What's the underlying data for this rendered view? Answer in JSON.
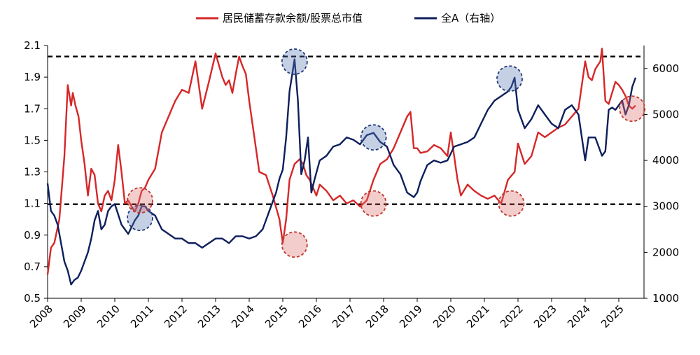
{
  "chart_data": {
    "type": "line",
    "legend": {
      "placement": "top-center",
      "entries": [
        {
          "name": "居民储蓄存款余额/股票总市值",
          "color": "#d62728",
          "axis": "left"
        },
        {
          "name": "全A（右轴）",
          "color": "#0d1f5c",
          "axis": "right"
        }
      ]
    },
    "x_ticks": [
      "2008",
      "2009",
      "2010",
      "2011",
      "2012",
      "2013",
      "2014",
      "2015",
      "2016",
      "2017",
      "2018",
      "2019",
      "2020",
      "2021",
      "2022",
      "2023",
      "2024",
      "2025"
    ],
    "y_left": {
      "range": [
        0.5,
        2.1
      ],
      "ticks": [
        "0.5",
        "0.7",
        "0.9",
        "1.1",
        "1.3",
        "1.5",
        "1.7",
        "1.9",
        "2.1"
      ]
    },
    "y_right": {
      "range": [
        1000,
        6500
      ],
      "ticks": [
        "1000",
        "2000",
        "3000",
        "4000",
        "5000",
        "6000"
      ]
    },
    "reference_lines": [
      {
        "axis": "left",
        "value": 2.03,
        "style": "dashed",
        "color": "#000000"
      },
      {
        "axis": "left",
        "value": 1.095,
        "style": "dashed",
        "color": "#000000"
      }
    ],
    "highlights": [
      {
        "series": "全A（右轴）",
        "x": 2015.35,
        "y": 6150,
        "color": "#1f3a7a"
      },
      {
        "series": "全A（右轴）",
        "x": 2017.7,
        "y": 4500,
        "color": "#1f3a7a"
      },
      {
        "series": "全A（右轴）",
        "x": 2021.75,
        "y": 5780,
        "color": "#1f3a7a"
      },
      {
        "series": "全A（右轴）",
        "x": 2010.75,
        "y": 2750,
        "color": "#1f3a7a"
      },
      {
        "series": "居民储蓄存款余额/股票总市值",
        "x": 2010.75,
        "y": 1.12,
        "color": "#c0392b"
      },
      {
        "series": "居民储蓄存款余额/股票总市值",
        "x": 2015.35,
        "y": 0.84,
        "color": "#c0392b"
      },
      {
        "series": "居民储蓄存款余额/股票总市值",
        "x": 2017.7,
        "y": 1.1,
        "color": "#c0392b"
      },
      {
        "series": "居民储蓄存款余额/股票总市值",
        "x": 2021.8,
        "y": 1.1,
        "color": "#c0392b"
      },
      {
        "series": "居民储蓄存款余额/股票总市值",
        "x": 2025.4,
        "y": 1.7,
        "color": "#c0392b"
      }
    ],
    "series": [
      {
        "name": "居民储蓄存款余额/股票总市值",
        "axis": "left",
        "color": "#d62728",
        "x": [
          2008.0,
          2008.1,
          2008.2,
          2008.35,
          2008.5,
          2008.6,
          2008.7,
          2008.75,
          2008.83,
          2008.92,
          2009.0,
          2009.1,
          2009.2,
          2009.3,
          2009.4,
          2009.5,
          2009.6,
          2009.7,
          2009.8,
          2009.9,
          2010.0,
          2010.1,
          2010.2,
          2010.3,
          2010.4,
          2010.5,
          2010.6,
          2010.7,
          2010.8,
          2010.9,
          2011.0,
          2011.2,
          2011.4,
          2011.6,
          2011.8,
          2012.0,
          2012.2,
          2012.4,
          2012.6,
          2012.8,
          2013.0,
          2013.2,
          2013.3,
          2013.4,
          2013.5,
          2013.6,
          2013.7,
          2013.8,
          2013.9,
          2014.0,
          2014.1,
          2014.2,
          2014.3,
          2014.5,
          2014.7,
          2014.9,
          2015.0,
          2015.1,
          2015.2,
          2015.35,
          2015.5,
          2015.6,
          2015.7,
          2015.8,
          2015.9,
          2016.0,
          2016.1,
          2016.3,
          2016.5,
          2016.7,
          2016.9,
          2017.1,
          2017.3,
          2017.5,
          2017.7,
          2017.9,
          2018.1,
          2018.3,
          2018.5,
          2018.7,
          2018.8,
          2018.9,
          2019.0,
          2019.1,
          2019.3,
          2019.5,
          2019.7,
          2019.9,
          2020.0,
          2020.1,
          2020.2,
          2020.3,
          2020.5,
          2020.7,
          2020.9,
          2021.1,
          2021.3,
          2021.5,
          2021.7,
          2021.9,
          2022.0,
          2022.2,
          2022.4,
          2022.6,
          2022.8,
          2023.0,
          2023.2,
          2023.4,
          2023.6,
          2023.8,
          2024.0,
          2024.1,
          2024.2,
          2024.3,
          2024.45,
          2024.5,
          2024.6,
          2024.7,
          2024.8,
          2024.9,
          2025.0,
          2025.1,
          2025.2,
          2025.3,
          2025.4,
          2025.5
        ],
        "values": [
          0.65,
          0.82,
          0.85,
          1.0,
          1.4,
          1.85,
          1.72,
          1.8,
          1.72,
          1.65,
          1.5,
          1.35,
          1.15,
          1.32,
          1.28,
          1.1,
          1.05,
          1.15,
          1.18,
          1.12,
          1.25,
          1.47,
          1.3,
          1.1,
          1.12,
          1.08,
          1.05,
          1.1,
          1.18,
          1.2,
          1.25,
          1.32,
          1.55,
          1.65,
          1.75,
          1.82,
          1.8,
          2.0,
          1.7,
          1.87,
          2.05,
          1.9,
          1.85,
          1.88,
          1.8,
          1.92,
          2.03,
          1.97,
          1.92,
          1.75,
          1.6,
          1.45,
          1.3,
          1.28,
          1.15,
          1.0,
          0.85,
          1.0,
          1.25,
          1.35,
          1.38,
          1.35,
          1.28,
          1.25,
          1.2,
          1.15,
          1.22,
          1.18,
          1.12,
          1.15,
          1.1,
          1.12,
          1.08,
          1.12,
          1.25,
          1.35,
          1.38,
          1.45,
          1.55,
          1.65,
          1.68,
          1.45,
          1.45,
          1.42,
          1.43,
          1.47,
          1.45,
          1.4,
          1.55,
          1.4,
          1.25,
          1.15,
          1.22,
          1.18,
          1.15,
          1.13,
          1.15,
          1.1,
          1.25,
          1.3,
          1.48,
          1.35,
          1.4,
          1.55,
          1.52,
          1.55,
          1.58,
          1.6,
          1.65,
          1.7,
          2.0,
          1.9,
          1.88,
          1.95,
          2.0,
          2.08,
          1.75,
          1.73,
          1.8,
          1.87,
          1.85,
          1.82,
          1.78,
          1.72,
          1.7,
          1.72
        ],
        "line_only": true
      },
      {
        "name": "全A（右轴）",
        "axis": "right",
        "color": "#0d1f5c",
        "x": [
          2008.0,
          2008.1,
          2008.2,
          2008.3,
          2008.4,
          2008.5,
          2008.6,
          2008.7,
          2008.8,
          2008.9,
          2009.0,
          2009.1,
          2009.2,
          2009.3,
          2009.4,
          2009.5,
          2009.6,
          2009.7,
          2009.8,
          2009.9,
          2010.0,
          2010.2,
          2010.4,
          2010.6,
          2010.7,
          2010.8,
          2010.9,
          2011.0,
          2011.2,
          2011.4,
          2011.6,
          2011.8,
          2012.0,
          2012.2,
          2012.4,
          2012.6,
          2012.8,
          2013.0,
          2013.2,
          2013.4,
          2013.6,
          2013.8,
          2014.0,
          2014.2,
          2014.4,
          2014.6,
          2014.8,
          2014.9,
          2015.0,
          2015.1,
          2015.2,
          2015.35,
          2015.45,
          2015.55,
          2015.65,
          2015.75,
          2015.85,
          2015.95,
          2016.1,
          2016.3,
          2016.5,
          2016.7,
          2016.9,
          2017.1,
          2017.3,
          2017.5,
          2017.7,
          2017.9,
          2018.1,
          2018.3,
          2018.5,
          2018.7,
          2018.9,
          2019.0,
          2019.1,
          2019.3,
          2019.5,
          2019.7,
          2019.9,
          2020.1,
          2020.3,
          2020.5,
          2020.7,
          2020.9,
          2021.1,
          2021.3,
          2021.5,
          2021.7,
          2021.8,
          2021.9,
          2022.0,
          2022.2,
          2022.4,
          2022.6,
          2022.8,
          2023.0,
          2023.2,
          2023.4,
          2023.6,
          2023.8,
          2024.0,
          2024.1,
          2024.3,
          2024.5,
          2024.6,
          2024.7,
          2024.8,
          2024.9,
          2025.0,
          2025.1,
          2025.2,
          2025.3,
          2025.4,
          2025.5
        ],
        "values": [
          3500,
          2900,
          2800,
          2600,
          2200,
          1800,
          1600,
          1300,
          1400,
          1450,
          1600,
          1800,
          2000,
          2300,
          2700,
          2900,
          2500,
          2600,
          2900,
          3000,
          3050,
          2600,
          2400,
          2700,
          2800,
          3000,
          3000,
          2900,
          2800,
          2500,
          2400,
          2300,
          2300,
          2200,
          2200,
          2100,
          2200,
          2300,
          2300,
          2200,
          2350,
          2350,
          2300,
          2350,
          2500,
          2900,
          3300,
          3600,
          3800,
          4500,
          5500,
          6200,
          5300,
          3700,
          4000,
          4500,
          3300,
          3600,
          4000,
          4100,
          4300,
          4350,
          4500,
          4450,
          4350,
          4550,
          4600,
          4400,
          4300,
          3900,
          3700,
          3300,
          3200,
          3300,
          3550,
          3900,
          4000,
          3950,
          4000,
          4300,
          4350,
          4400,
          4500,
          4800,
          5100,
          5300,
          5400,
          5500,
          5600,
          5800,
          5100,
          4700,
          4900,
          5200,
          5000,
          4800,
          4700,
          5100,
          5200,
          5000,
          4000,
          4500,
          4500,
          4100,
          4200,
          5100,
          5150,
          5100,
          5200,
          5300,
          5000,
          5200,
          5600,
          5800
        ],
        "line_only": true
      }
    ]
  }
}
